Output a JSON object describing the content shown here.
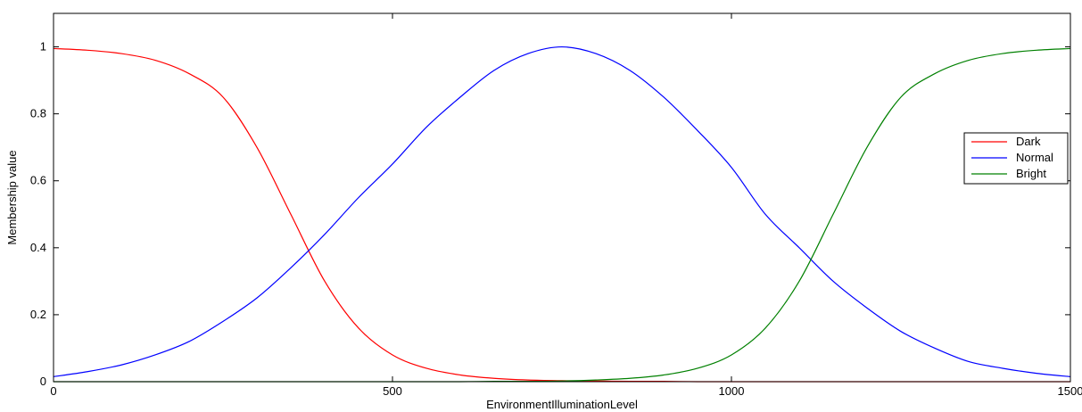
{
  "chart_data": {
    "type": "line",
    "title": "",
    "xlabel": "EnvironmentIlluminationLevel",
    "ylabel": "Membership value",
    "xlim": [
      0,
      1500
    ],
    "ylim": [
      0,
      1.1
    ],
    "xticks": [
      0,
      500,
      1000,
      1500
    ],
    "yticks": [
      0,
      0.2,
      0.4,
      0.6,
      0.8,
      1
    ],
    "x_tick_labels": [
      "0",
      "500",
      "1000",
      "1500"
    ],
    "y_tick_labels": [
      "0",
      "0.2",
      "0.4",
      "0.6",
      "0.8",
      "1"
    ],
    "grid": false,
    "legend_position": "right",
    "x": [
      0,
      50,
      100,
      150,
      200,
      250,
      300,
      350,
      400,
      450,
      500,
      550,
      600,
      650,
      700,
      750,
      800,
      850,
      900,
      950,
      1000,
      1050,
      1100,
      1150,
      1200,
      1250,
      1300,
      1350,
      1400,
      1450,
      1500
    ],
    "series": [
      {
        "name": "Dark",
        "color": "#ff0000",
        "values": [
          0.995,
          0.99,
          0.98,
          0.96,
          0.92,
          0.85,
          0.7,
          0.5,
          0.3,
          0.16,
          0.08,
          0.04,
          0.02,
          0.01,
          0.005,
          0.003,
          0.002,
          0.001,
          0.001,
          0.0,
          0.0,
          0.0,
          0.0,
          0.0,
          0.0,
          0.0,
          0.0,
          0.0,
          0.0,
          0.0,
          0.0
        ]
      },
      {
        "name": "Normal",
        "color": "#0000ff",
        "values": [
          0.015,
          0.03,
          0.05,
          0.08,
          0.12,
          0.18,
          0.25,
          0.34,
          0.44,
          0.55,
          0.65,
          0.76,
          0.85,
          0.93,
          0.98,
          1.0,
          0.98,
          0.93,
          0.85,
          0.75,
          0.64,
          0.5,
          0.4,
          0.3,
          0.22,
          0.15,
          0.1,
          0.06,
          0.04,
          0.025,
          0.015
        ]
      },
      {
        "name": "Bright",
        "color": "#008000",
        "values": [
          0.0,
          0.0,
          0.0,
          0.0,
          0.0,
          0.0,
          0.0,
          0.0,
          0.0,
          0.0,
          0.0,
          0.0,
          0.0,
          0.001,
          0.001,
          0.002,
          0.005,
          0.01,
          0.02,
          0.04,
          0.08,
          0.16,
          0.3,
          0.5,
          0.7,
          0.85,
          0.92,
          0.96,
          0.98,
          0.99,
          0.995
        ]
      }
    ]
  }
}
